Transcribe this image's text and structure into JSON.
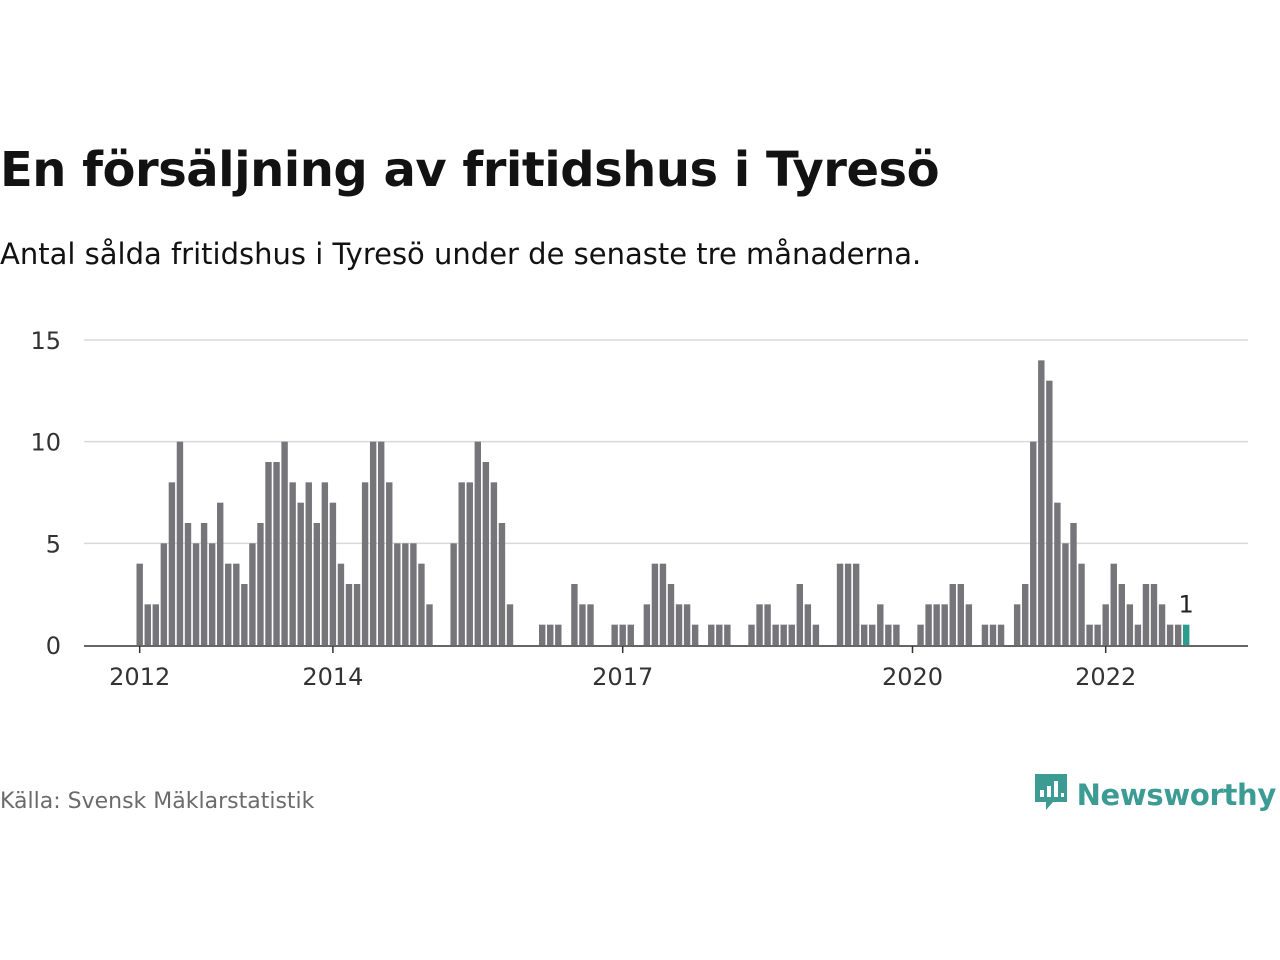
{
  "header": {
    "title": "En försäljning av fritidshus i Tyresö",
    "subtitle": "Antal sålda fritidshus i Tyresö under de senaste tre månaderna."
  },
  "footer": {
    "source": "Källa: Svensk Mäklarstatistik",
    "brand": "Newsworthy",
    "brand_icon": "bar-chart-speech-bubble-icon"
  },
  "colors": {
    "bar": "#76767a",
    "highlight": "#2a9d8f",
    "grid": "#d9d9d9",
    "axis": "#333333",
    "brand": "#3c9c94"
  },
  "chart_data": {
    "type": "bar",
    "xlabel": "",
    "ylabel": "",
    "ylim": [
      0,
      15
    ],
    "yticks": [
      0,
      5,
      10,
      15
    ],
    "grid": true,
    "x_start": "2012-01",
    "x_tick_labels": [
      {
        "label": "2012",
        "x": "2012-01"
      },
      {
        "label": "2014",
        "x": "2014-01"
      },
      {
        "label": "2017",
        "x": "2017-01"
      },
      {
        "label": "2020",
        "x": "2020-01"
      },
      {
        "label": "2022",
        "x": "2022-01"
      }
    ],
    "values": [
      4,
      2,
      2,
      5,
      8,
      10,
      6,
      5,
      6,
      5,
      7,
      4,
      4,
      3,
      5,
      6,
      9,
      9,
      10,
      8,
      7,
      8,
      6,
      8,
      7,
      4,
      3,
      3,
      8,
      10,
      10,
      8,
      5,
      5,
      5,
      4,
      2,
      0,
      0,
      5,
      8,
      8,
      10,
      9,
      8,
      6,
      2,
      0,
      0,
      0,
      1,
      1,
      1,
      0,
      3,
      2,
      2,
      0,
      0,
      1,
      1,
      1,
      0,
      2,
      4,
      4,
      3,
      2,
      2,
      1,
      0,
      1,
      1,
      1,
      0,
      0,
      1,
      2,
      2,
      1,
      1,
      1,
      3,
      2,
      1,
      0,
      0,
      4,
      4,
      4,
      1,
      1,
      2,
      1,
      1,
      0,
      0,
      1,
      2,
      2,
      2,
      3,
      3,
      2,
      0,
      1,
      1,
      1,
      0,
      2,
      3,
      10,
      14,
      13,
      7,
      5,
      6,
      4,
      1,
      1,
      2,
      4,
      3,
      2,
      1,
      3,
      3,
      2,
      1,
      1,
      1
    ],
    "highlight_index": 130,
    "highlight_label": "1"
  }
}
